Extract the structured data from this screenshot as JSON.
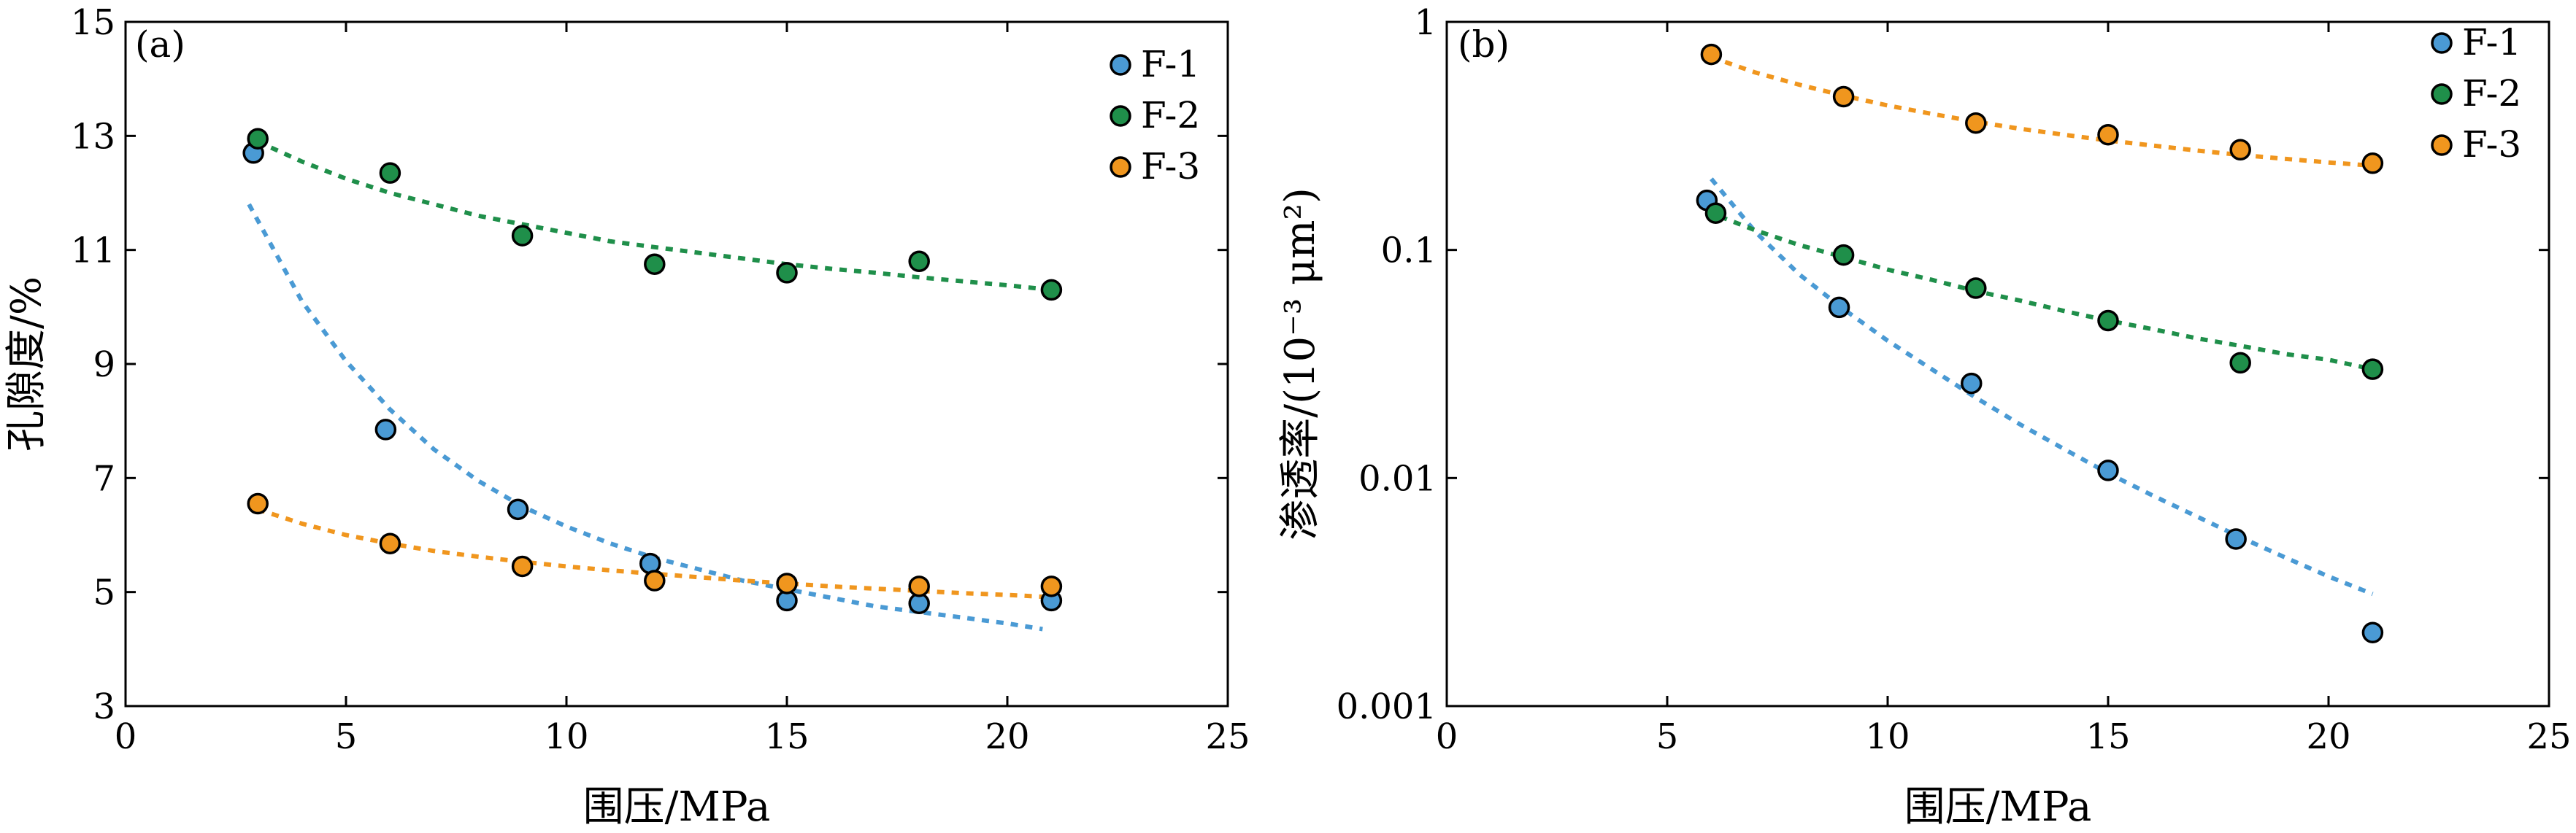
{
  "chart_data": [
    {
      "type": "scatter",
      "panel": "(a)",
      "title": "",
      "xlabel": "围压/MPa",
      "ylabel": "孔隙度/%",
      "xlim": [
        0,
        25
      ],
      "ylim": [
        3,
        15
      ],
      "yscale": "linear",
      "xticks": [
        "0",
        "5",
        "10",
        "15",
        "20",
        "25"
      ],
      "yticks": [
        "3",
        "5",
        "7",
        "9",
        "11",
        "13",
        "15"
      ],
      "grid": false,
      "legend_position": "top-right",
      "series": [
        {
          "name": "F-1",
          "color": "#4a9ad4",
          "points": [
            [
              2.9,
              12.7
            ],
            [
              5.9,
              7.85
            ],
            [
              8.9,
              6.45
            ],
            [
              11.9,
              5.5
            ],
            [
              15,
              4.85
            ],
            [
              18,
              4.8
            ],
            [
              21,
              4.85
            ]
          ],
          "fit": [
            [
              2.8,
              11.8
            ],
            [
              4,
              10.1
            ],
            [
              5,
              9.05
            ],
            [
              6,
              8.2
            ],
            [
              7,
              7.5
            ],
            [
              8,
              6.95
            ],
            [
              9,
              6.5
            ],
            [
              10,
              6.15
            ],
            [
              11,
              5.85
            ],
            [
              12,
              5.6
            ],
            [
              13,
              5.4
            ],
            [
              14,
              5.2
            ],
            [
              15,
              5.05
            ],
            [
              16,
              4.9
            ],
            [
              17,
              4.75
            ],
            [
              18,
              4.65
            ],
            [
              19,
              4.55
            ],
            [
              20,
              4.45
            ],
            [
              20.8,
              4.35
            ]
          ]
        },
        {
          "name": "F-2",
          "color": "#1f8f4a",
          "points": [
            [
              3,
              12.95
            ],
            [
              6,
              12.35
            ],
            [
              9,
              11.25
            ],
            [
              12,
              10.75
            ],
            [
              15,
              10.6
            ],
            [
              18,
              10.8
            ],
            [
              21,
              10.3
            ]
          ],
          "fit": [
            [
              3,
              12.9
            ],
            [
              4,
              12.55
            ],
            [
              5,
              12.25
            ],
            [
              6,
              12.0
            ],
            [
              7,
              11.8
            ],
            [
              8,
              11.6
            ],
            [
              9,
              11.45
            ],
            [
              10,
              11.3
            ],
            [
              11,
              11.15
            ],
            [
              12,
              11.05
            ],
            [
              13,
              10.95
            ],
            [
              14,
              10.85
            ],
            [
              15,
              10.75
            ],
            [
              16,
              10.67
            ],
            [
              17,
              10.6
            ],
            [
              18,
              10.52
            ],
            [
              19,
              10.45
            ],
            [
              20,
              10.38
            ],
            [
              21,
              10.3
            ]
          ]
        },
        {
          "name": "F-3",
          "color": "#f0961e",
          "points": [
            [
              3,
              6.55
            ],
            [
              6,
              5.85
            ],
            [
              9,
              5.45
            ],
            [
              12,
              5.2
            ],
            [
              15,
              5.15
            ],
            [
              18,
              5.1
            ],
            [
              21,
              5.1
            ]
          ],
          "fit": [
            [
              3,
              6.45
            ],
            [
              4,
              6.2
            ],
            [
              5,
              6.0
            ],
            [
              6,
              5.85
            ],
            [
              7,
              5.72
            ],
            [
              8,
              5.62
            ],
            [
              9,
              5.53
            ],
            [
              10,
              5.45
            ],
            [
              11,
              5.38
            ],
            [
              12,
              5.32
            ],
            [
              13,
              5.26
            ],
            [
              14,
              5.2
            ],
            [
              15,
              5.15
            ],
            [
              16,
              5.1
            ],
            [
              17,
              5.06
            ],
            [
              18,
              5.02
            ],
            [
              19,
              4.98
            ],
            [
              20,
              4.95
            ],
            [
              21,
              4.91
            ]
          ]
        }
      ]
    },
    {
      "type": "scatter",
      "panel": "(b)",
      "title": "",
      "xlabel": "围压/MPa",
      "ylabel": "渗透率/(10⁻³ μm²)",
      "xlim": [
        0,
        25
      ],
      "ylim": [
        0.001,
        1
      ],
      "yscale": "log",
      "xticks": [
        "0",
        "5",
        "10",
        "15",
        "20",
        "25"
      ],
      "yticks": [
        "0.001",
        "0.01",
        "0.1",
        "1"
      ],
      "grid": false,
      "legend_position": "top-right",
      "series": [
        {
          "name": "F-1",
          "color": "#4a9ad4",
          "points": [
            [
              5.9,
              0.165
            ],
            [
              8.9,
              0.056
            ],
            [
              11.9,
              0.026
            ],
            [
              15,
              0.0108
            ],
            [
              17.9,
              0.0054
            ],
            [
              21,
              0.0021
            ]
          ],
          "fit": [
            [
              6,
              0.205
            ],
            [
              7,
              0.12
            ],
            [
              8,
              0.078
            ],
            [
              9,
              0.055
            ],
            [
              10,
              0.04
            ],
            [
              11,
              0.03
            ],
            [
              12,
              0.0225
            ],
            [
              13,
              0.0172
            ],
            [
              14,
              0.0134
            ],
            [
              15,
              0.0105
            ],
            [
              16,
              0.0084
            ],
            [
              17,
              0.0068
            ],
            [
              18,
              0.0055
            ],
            [
              19,
              0.0045
            ],
            [
              20,
              0.0037
            ],
            [
              21,
              0.0031
            ]
          ]
        },
        {
          "name": "F-2",
          "color": "#1f8f4a",
          "points": [
            [
              6.1,
              0.145
            ],
            [
              9,
              0.095
            ],
            [
              12,
              0.068
            ],
            [
              15,
              0.049
            ],
            [
              18,
              0.032
            ],
            [
              21,
              0.03
            ]
          ],
          "fit": [
            [
              6.2,
              0.14
            ],
            [
              7,
              0.122
            ],
            [
              8,
              0.105
            ],
            [
              9,
              0.093
            ],
            [
              10,
              0.082
            ],
            [
              11,
              0.074
            ],
            [
              12,
              0.066
            ],
            [
              13,
              0.06
            ],
            [
              14,
              0.054
            ],
            [
              15,
              0.049
            ],
            [
              16,
              0.045
            ],
            [
              17,
              0.041
            ],
            [
              18,
              0.038
            ],
            [
              19,
              0.035
            ],
            [
              20,
              0.033
            ],
            [
              21,
              0.03
            ]
          ]
        },
        {
          "name": "F-3",
          "color": "#f0961e",
          "points": [
            [
              6,
              0.72
            ],
            [
              9,
              0.47
            ],
            [
              12,
              0.36
            ],
            [
              15,
              0.32
            ],
            [
              18,
              0.275
            ],
            [
              21,
              0.24
            ]
          ],
          "fit": [
            [
              6,
              0.7
            ],
            [
              7,
              0.6
            ],
            [
              8,
              0.53
            ],
            [
              9,
              0.475
            ],
            [
              10,
              0.43
            ],
            [
              11,
              0.395
            ],
            [
              12,
              0.365
            ],
            [
              13,
              0.34
            ],
            [
              14,
              0.32
            ],
            [
              15,
              0.302
            ],
            [
              16,
              0.287
            ],
            [
              17,
              0.273
            ],
            [
              18,
              0.261
            ],
            [
              19,
              0.251
            ],
            [
              20,
              0.242
            ],
            [
              21,
              0.234
            ]
          ]
        }
      ]
    }
  ]
}
